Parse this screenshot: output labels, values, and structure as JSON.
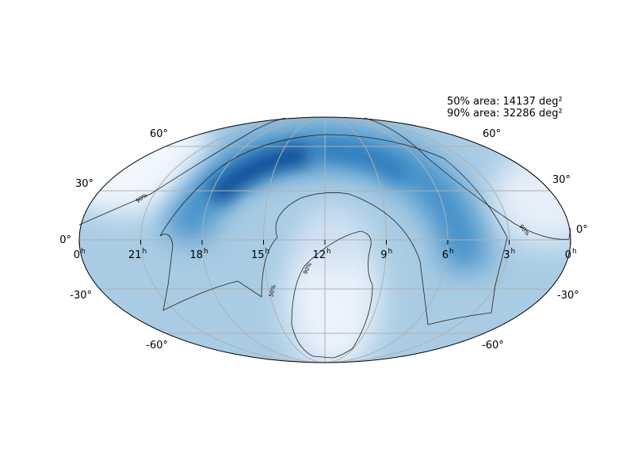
{
  "annotations": [
    "50% area: 14137 deg²",
    "90% area: 32286 deg²"
  ],
  "ra_labels": [
    {
      "number": "0",
      "suffix": "h"
    },
    {
      "number": "21",
      "suffix": "h"
    },
    {
      "number": "18",
      "suffix": "h"
    },
    {
      "number": "15",
      "suffix": "h"
    },
    {
      "number": "12",
      "suffix": "h"
    },
    {
      "number": "9",
      "suffix": "h"
    },
    {
      "number": "6",
      "suffix": "h"
    },
    {
      "number": "3",
      "suffix": "h"
    },
    {
      "number": "0",
      "suffix": "h"
    }
  ],
  "dec_labels_left": [
    "60°",
    "30°",
    "0°",
    "-30°",
    "-60°"
  ],
  "dec_labels_right": [
    "60°",
    "30°",
    "0°",
    "-30°",
    "-60°"
  ],
  "contour_labels": [
    "90%",
    "90%",
    "90%",
    "50%"
  ]
}
